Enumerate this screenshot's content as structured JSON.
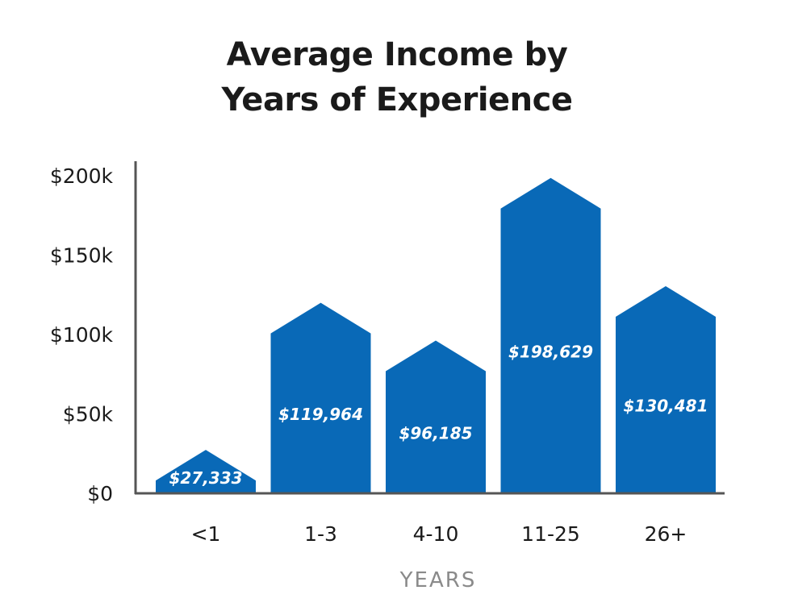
{
  "chart_data": {
    "type": "bar",
    "title_lines": [
      "Average Income by",
      "Years of Experience"
    ],
    "categories": [
      "<1",
      "1-3",
      "4-10",
      "11-25",
      "26+"
    ],
    "values": [
      27333,
      119964,
      96185,
      198629,
      130481
    ],
    "data_labels": [
      "$27,333",
      "$119,964",
      "$96,185",
      "$198,629",
      "$130,481"
    ],
    "xlabel": "YEARS",
    "ylabel": "",
    "ylim": [
      0,
      200000
    ],
    "yticks": [
      0,
      50000,
      100000,
      150000,
      200000
    ],
    "ytick_labels": [
      "$0",
      "$50k",
      "$100k",
      "$150k",
      "$200k"
    ],
    "grid": false,
    "legend": "none",
    "bar_shape": "house-shaped (pointed top)",
    "colors": {
      "bar": "#0969b7",
      "data_label": "#ffffff",
      "axis": "#555555",
      "tick_label": "#1a1a1a",
      "xlabel": "#8a8a8a",
      "title": "#1a1a1a"
    }
  }
}
